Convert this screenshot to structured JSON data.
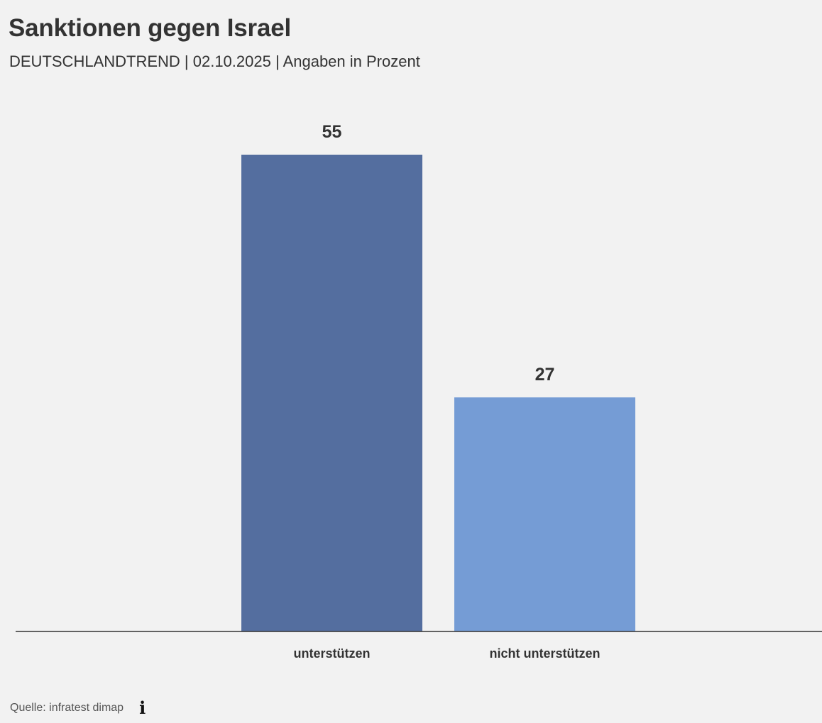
{
  "header": {
    "title": "Sanktionen gegen Israel",
    "subtitle": "DEUTSCHLANDTREND | 02.10.2025 | Angaben in Prozent"
  },
  "footer": {
    "source": "Quelle: infratest dimap",
    "info_icon": "info-icon"
  },
  "chart_data": {
    "type": "bar",
    "title": "Sanktionen gegen Israel",
    "subtitle": "DEUTSCHLANDTREND | 02.10.2025 | Angaben in Prozent",
    "categories": [
      "unterstützen",
      "nicht unterstützen"
    ],
    "values": [
      55,
      27
    ],
    "colors": [
      "#546e9f",
      "#759cd5"
    ],
    "data_labels": [
      "55",
      "27"
    ],
    "ylim": [
      0,
      55
    ],
    "grid": false,
    "legend": "none",
    "axis_color": "#333333"
  }
}
